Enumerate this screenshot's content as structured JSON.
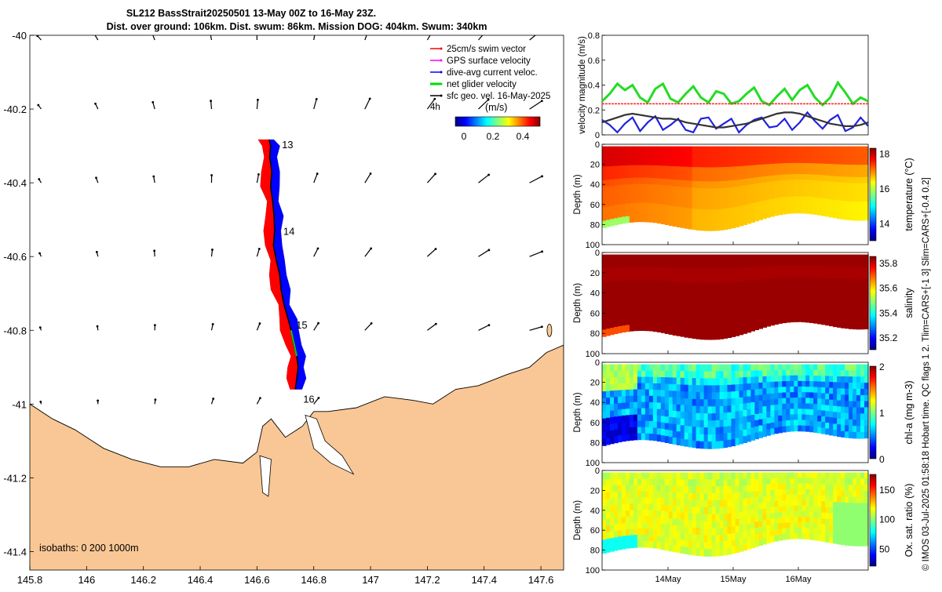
{
  "title_line1": "SL212 BassStrait20250501 13-May 00Z to 16-May 23Z.",
  "title_line2": "Dist. over ground: 106km. Dist. swum: 86km. Mission DOG: 404km. Swum: 340km",
  "legend": {
    "items": [
      {
        "label": "25cm/s swim vector",
        "color": "#ff0000"
      },
      {
        "label": "GPS surface velocity",
        "color": "#ff00ff"
      },
      {
        "label": "dive-avg current veloc.",
        "color": "#0000ff"
      },
      {
        "label": "net glider velocity",
        "color": "#00dd00"
      },
      {
        "label": "sfc geo. vel. 16-May-2025",
        "color": "#000000"
      }
    ],
    "interval": "4h",
    "colorbar_title": "(m/s)",
    "colorbar_ticks": [
      "0",
      "0.2",
      "0.4"
    ]
  },
  "map_note": "isobaths: 0   200  1000m",
  "day_labels": [
    {
      "label": "13",
      "lon": 146.66,
      "lat": -40.295
    },
    {
      "label": "14",
      "lon": 146.665,
      "lat": -40.53
    },
    {
      "label": "15",
      "lon": 146.71,
      "lat": -40.785
    },
    {
      "label": "16",
      "lon": 146.735,
      "lat": -40.985
    }
  ],
  "side_text": "© IMOS 03-Jul-2025 01:58:18 Hobart time. QC flags 1  2. Tlim=CARS+[-1 3] Slim=CARS+[-0.4 0.2]",
  "chart_data": [
    {
      "type": "map",
      "xlim": [
        145.8,
        147.68
      ],
      "ylim": [
        -41.45,
        -40.0
      ],
      "x_ticks": [
        "145.8",
        "146",
        "146.2",
        "146.4",
        "146.6",
        "146.8",
        "147",
        "147.2",
        "147.4",
        "147.6"
      ],
      "y_ticks": [
        "-40",
        "-40.2",
        "-40.4",
        "-40.6",
        "-40.8",
        "-41",
        "-41.2",
        "-41.4"
      ],
      "glider_track": [
        [
          146.643,
          -40.283
        ],
        [
          146.648,
          -40.3
        ],
        [
          146.645,
          -40.33
        ],
        [
          146.652,
          -40.37
        ],
        [
          146.648,
          -40.41
        ],
        [
          146.655,
          -40.45
        ],
        [
          146.66,
          -40.49
        ],
        [
          146.662,
          -40.53
        ],
        [
          146.658,
          -40.57
        ],
        [
          146.668,
          -40.61
        ],
        [
          146.68,
          -40.65
        ],
        [
          146.685,
          -40.69
        ],
        [
          146.695,
          -40.73
        ],
        [
          146.71,
          -40.77
        ],
        [
          146.72,
          -40.8
        ],
        [
          146.73,
          -40.84
        ],
        [
          146.74,
          -40.87
        ],
        [
          146.745,
          -40.9
        ],
        [
          146.74,
          -40.93
        ],
        [
          146.735,
          -40.96
        ]
      ],
      "coastline": [
        [
          145.8,
          -41.0
        ],
        [
          145.88,
          -41.04
        ],
        [
          145.96,
          -41.07
        ],
        [
          146.06,
          -41.12
        ],
        [
          146.16,
          -41.15
        ],
        [
          146.26,
          -41.17
        ],
        [
          146.36,
          -41.17
        ],
        [
          146.45,
          -41.15
        ],
        [
          146.55,
          -41.16
        ],
        [
          146.6,
          -41.13
        ],
        [
          146.62,
          -41.06
        ],
        [
          146.65,
          -41.04
        ],
        [
          146.7,
          -41.09
        ],
        [
          146.76,
          -41.06
        ],
        [
          146.8,
          -41.02
        ],
        [
          146.85,
          -41.02
        ],
        [
          146.95,
          -41.01
        ],
        [
          147.05,
          -40.98
        ],
        [
          147.15,
          -40.99
        ],
        [
          147.22,
          -41.0
        ],
        [
          147.3,
          -40.96
        ],
        [
          147.38,
          -40.95
        ],
        [
          147.48,
          -40.92
        ],
        [
          147.56,
          -40.9
        ],
        [
          147.62,
          -40.86
        ],
        [
          147.68,
          -40.84
        ]
      ]
    },
    {
      "type": "line",
      "ylabel": "velocity magnitude (m/s)",
      "ylim": [
        0,
        0.8
      ],
      "y_ticks": [
        "0",
        "0.2",
        "0.4",
        "0.6",
        "0.8"
      ],
      "xlim": [
        13,
        17
      ],
      "x_ticks": [
        "14May",
        "15May",
        "16May"
      ],
      "series": [
        {
          "name": "net glider velocity",
          "color": "#22dd22",
          "values": [
            0.27,
            0.33,
            0.41,
            0.36,
            0.4,
            0.3,
            0.26,
            0.37,
            0.41,
            0.29,
            0.26,
            0.33,
            0.39,
            0.3,
            0.26,
            0.35,
            0.33,
            0.25,
            0.27,
            0.33,
            0.38,
            0.27,
            0.24,
            0.31,
            0.37,
            0.28,
            0.36,
            0.4,
            0.3,
            0.24,
            0.3,
            0.42,
            0.34,
            0.25,
            0.3,
            0.27
          ]
        },
        {
          "name": "dive-avg current veloc.",
          "color": "#2222dd",
          "values": [
            0.12,
            0.08,
            0.02,
            0.09,
            0.14,
            0.03,
            0.1,
            0.15,
            0.04,
            0.08,
            0.13,
            0.04,
            0.02,
            0.13,
            0.14,
            0.05,
            0.09,
            0.13,
            0.02,
            0.08,
            0.12,
            0.14,
            0.06,
            0.07,
            0.13,
            0.04,
            0.1,
            0.18,
            0.11,
            0.05,
            0.12,
            0.16,
            0.03,
            0.06,
            0.14,
            0.07
          ]
        },
        {
          "name": "sfc geo. vel.",
          "color": "#333333",
          "values": [
            0.1,
            0.12,
            0.14,
            0.16,
            0.17,
            0.16,
            0.15,
            0.14,
            0.13,
            0.13,
            0.12,
            0.1,
            0.09,
            0.08,
            0.07,
            0.06,
            0.06,
            0.07,
            0.08,
            0.09,
            0.11,
            0.13,
            0.15,
            0.17,
            0.18,
            0.18,
            0.17,
            0.15,
            0.13,
            0.11,
            0.09,
            0.08,
            0.07,
            0.07,
            0.08,
            0.1
          ]
        },
        {
          "name": "25cm/s swim vector",
          "color": "#ff2222",
          "values": [
            0.25,
            0.25
          ]
        }
      ]
    },
    {
      "type": "heatmap",
      "ylabel": "Depth (m)",
      "cbar_label": "temperature (°C)",
      "clim": [
        13,
        18.3
      ],
      "cbar_ticks": [
        "14",
        "16",
        "18"
      ],
      "y_ticks": [
        "0",
        "20",
        "40",
        "60",
        "80",
        "100"
      ],
      "xlim": [
        13,
        17
      ],
      "x_ticks": [
        "14May",
        "15May",
        "16May"
      ],
      "ylim": [
        0,
        100
      ],
      "value_profile": [
        17.5,
        17.5,
        17.1,
        17.1,
        16.9,
        16.8,
        16.8,
        16.7,
        16.7,
        16.7
      ]
    },
    {
      "type": "heatmap",
      "ylabel": "Depth (m)",
      "cbar_label": "salinity",
      "clim": [
        35.1,
        35.85
      ],
      "cbar_ticks": [
        "35.2",
        "35.4",
        "35.6",
        "35.8"
      ],
      "y_ticks": [
        "0",
        "20",
        "40",
        "60",
        "80",
        "100"
      ],
      "xlim": [
        13,
        17
      ],
      "x_ticks": [
        "14May",
        "15May",
        "16May"
      ],
      "ylim": [
        0,
        100
      ],
      "value_profile": [
        35.83,
        35.82,
        35.82,
        35.83,
        35.83,
        35.83,
        35.83,
        35.83,
        35.83,
        35.83
      ]
    },
    {
      "type": "heatmap",
      "ylabel": "Depth (m)",
      "cbar_label": "chl-a (mg m-3)",
      "clim": [
        0,
        2
      ],
      "cbar_ticks": [
        "0",
        "1",
        "2"
      ],
      "y_ticks": [
        "0",
        "20",
        "40",
        "60",
        "80",
        "100"
      ],
      "xlim": [
        13,
        17
      ],
      "x_ticks": [
        "14May",
        "15May",
        "16May"
      ],
      "ylim": [
        0,
        100
      ],
      "value_profile": [
        0.9,
        0.7,
        0.55,
        0.6,
        0.55,
        0.6,
        0.6,
        0.55,
        0.6,
        0.55
      ]
    },
    {
      "type": "heatmap",
      "ylabel": "Depth (m)",
      "cbar_label": "Ox. sat. ratio (%)",
      "clim": [
        20,
        175
      ],
      "cbar_ticks": [
        "50",
        "100",
        "150"
      ],
      "y_ticks": [
        "0",
        "20",
        "40",
        "60",
        "80",
        "100"
      ],
      "xlim": [
        13,
        17
      ],
      "x_ticks": [
        "14May",
        "15May",
        "16May"
      ],
      "ylim": [
        0,
        100
      ],
      "value_profile": [
        110,
        112,
        113,
        114,
        114,
        114,
        115,
        114,
        113,
        112
      ]
    }
  ]
}
